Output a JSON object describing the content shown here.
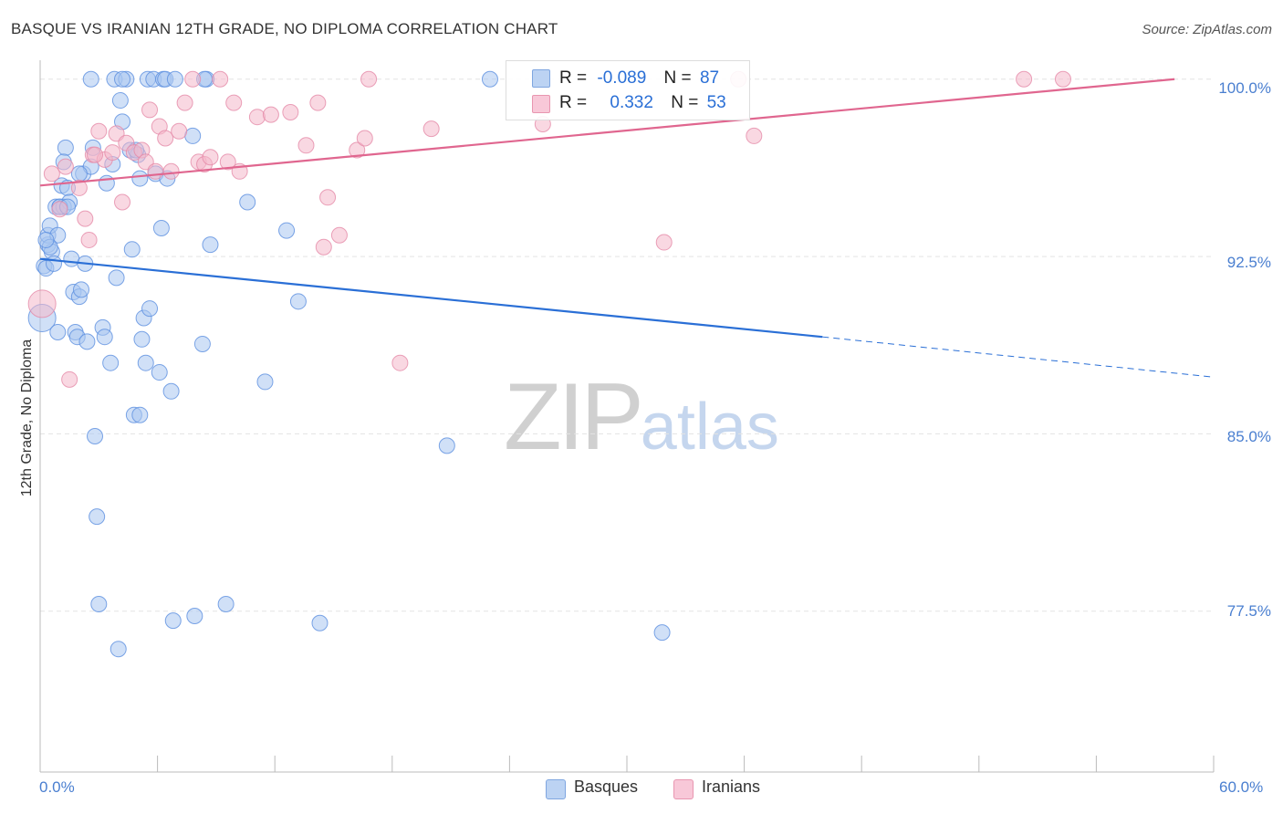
{
  "title": "BASQUE VS IRANIAN 12TH GRADE, NO DIPLOMA CORRELATION CHART",
  "source": "Source: ZipAtlas.com",
  "watermark": {
    "zip": "ZIP",
    "atlas": "atlas"
  },
  "colors": {
    "blue": "#2a6fd6",
    "blue_fill": "#a9c6f0",
    "pink": "#e0668f",
    "pink_fill": "#f4b8cb",
    "tick": "#4a7fd0",
    "grid": "#e3e3e3"
  },
  "legend": {
    "rows": [
      {
        "r_label": "R =",
        "r_value": "-0.089",
        "n_label": "N =",
        "n_value": "87",
        "series": "Basques"
      },
      {
        "r_label": "R =",
        "r_value": "0.332",
        "n_label": "N =",
        "n_value": "53",
        "series": "Iranians"
      }
    ]
  },
  "chart_data": {
    "type": "scatter",
    "title": "BASQUE VS IRANIAN 12TH GRADE, NO DIPLOMA CORRELATION CHART",
    "xlabel": "",
    "ylabel": "12th Grade, No Diploma",
    "xlim": [
      0,
      60
    ],
    "ylim": [
      70.7,
      100.8
    ],
    "x_tick_labels": [
      "0.0%",
      "60.0%"
    ],
    "y_ticks": [
      77.5,
      85.0,
      92.5,
      100.0
    ],
    "y_tick_labels": [
      "77.5%",
      "85.0%",
      "92.5%",
      "100.0%"
    ],
    "legend_position": "bottom-center",
    "series": [
      {
        "name": "Basques",
        "trend": {
          "x": [
            0,
            40,
            60
          ],
          "y": [
            92.4,
            89.1,
            87.4
          ],
          "solid_until": 40
        },
        "points": [
          [
            0.2,
            92.1
          ],
          [
            0.3,
            92.0
          ],
          [
            0.4,
            93.0
          ],
          [
            0.4,
            93.4
          ],
          [
            0.5,
            93.8
          ],
          [
            0.6,
            92.7
          ],
          [
            0.7,
            92.2
          ],
          [
            0.8,
            94.6
          ],
          [
            0.9,
            93.4
          ],
          [
            1.0,
            94.6
          ],
          [
            1.1,
            95.5
          ],
          [
            1.2,
            94.6
          ],
          [
            1.3,
            97.1
          ],
          [
            1.4,
            95.4
          ],
          [
            1.5,
            94.8
          ],
          [
            1.6,
            92.4
          ],
          [
            1.7,
            91.0
          ],
          [
            1.8,
            89.3
          ],
          [
            1.9,
            89.1
          ],
          [
            2.0,
            90.8
          ],
          [
            2.1,
            91.1
          ],
          [
            2.2,
            96.0
          ],
          [
            2.3,
            92.2
          ],
          [
            2.4,
            88.9
          ],
          [
            2.6,
            96.3
          ],
          [
            2.7,
            97.1
          ],
          [
            2.8,
            84.9
          ],
          [
            2.9,
            81.5
          ],
          [
            3.0,
            77.8
          ],
          [
            3.2,
            89.5
          ],
          [
            3.3,
            89.1
          ],
          [
            3.4,
            95.6
          ],
          [
            3.6,
            88.0
          ],
          [
            3.8,
            100.0
          ],
          [
            3.9,
            91.6
          ],
          [
            4.0,
            75.9
          ],
          [
            4.1,
            99.1
          ],
          [
            4.2,
            98.2
          ],
          [
            4.4,
            100.0
          ],
          [
            4.6,
            97.0
          ],
          [
            4.7,
            92.8
          ],
          [
            4.8,
            85.8
          ],
          [
            5.0,
            96.8
          ],
          [
            5.1,
            95.8
          ],
          [
            5.2,
            89.0
          ],
          [
            5.3,
            89.9
          ],
          [
            5.4,
            88.0
          ],
          [
            5.5,
            100.0
          ],
          [
            5.6,
            90.3
          ],
          [
            5.8,
            100.0
          ],
          [
            5.9,
            96.0
          ],
          [
            6.1,
            87.6
          ],
          [
            6.2,
            93.7
          ],
          [
            6.3,
            100.0
          ],
          [
            6.4,
            100.0
          ],
          [
            6.5,
            95.8
          ],
          [
            6.7,
            86.8
          ],
          [
            6.8,
            77.1
          ],
          [
            7.8,
            97.6
          ],
          [
            7.9,
            77.3
          ],
          [
            8.3,
            88.8
          ],
          [
            8.5,
            100.0
          ],
          [
            8.7,
            93.0
          ],
          [
            9.5,
            77.8
          ],
          [
            10.6,
            94.8
          ],
          [
            11.5,
            87.2
          ],
          [
            12.6,
            93.6
          ],
          [
            13.2,
            90.6
          ],
          [
            14.3,
            77.0
          ],
          [
            20.8,
            84.5
          ],
          [
            23.0,
            100.0
          ],
          [
            31.8,
            76.6
          ],
          [
            0.1,
            89.9
          ],
          [
            1.2,
            96.5
          ],
          [
            0.5,
            92.9
          ],
          [
            2.0,
            96.0
          ],
          [
            0.3,
            93.2
          ],
          [
            1.0,
            94.6
          ],
          [
            3.7,
            96.4
          ],
          [
            4.9,
            97.0
          ],
          [
            6.9,
            100.0
          ],
          [
            8.4,
            100.0
          ],
          [
            5.1,
            85.8
          ],
          [
            4.2,
            100.0
          ],
          [
            2.6,
            100.0
          ],
          [
            1.4,
            94.6
          ],
          [
            0.9,
            89.3
          ]
        ]
      },
      {
        "name": "Iranians",
        "trend": {
          "x": [
            0,
            58
          ],
          "y": [
            95.5,
            100.0
          ]
        },
        "points": [
          [
            0.1,
            90.5
          ],
          [
            0.6,
            96.0
          ],
          [
            1.0,
            94.5
          ],
          [
            1.3,
            96.3
          ],
          [
            1.5,
            87.3
          ],
          [
            2.0,
            95.4
          ],
          [
            2.3,
            94.1
          ],
          [
            2.5,
            93.2
          ],
          [
            2.7,
            96.8
          ],
          [
            3.0,
            97.8
          ],
          [
            3.3,
            96.6
          ],
          [
            3.7,
            96.9
          ],
          [
            3.9,
            97.7
          ],
          [
            4.2,
            94.8
          ],
          [
            4.4,
            97.3
          ],
          [
            4.8,
            96.9
          ],
          [
            5.2,
            97.0
          ],
          [
            5.4,
            96.5
          ],
          [
            5.6,
            98.7
          ],
          [
            5.9,
            96.1
          ],
          [
            6.1,
            98.0
          ],
          [
            6.4,
            97.5
          ],
          [
            6.7,
            96.1
          ],
          [
            7.1,
            97.8
          ],
          [
            7.4,
            99.0
          ],
          [
            7.8,
            100.0
          ],
          [
            8.1,
            96.5
          ],
          [
            8.4,
            96.4
          ],
          [
            8.7,
            96.7
          ],
          [
            9.2,
            100.0
          ],
          [
            9.6,
            96.5
          ],
          [
            9.9,
            99.0
          ],
          [
            10.2,
            96.1
          ],
          [
            11.1,
            98.4
          ],
          [
            11.8,
            98.5
          ],
          [
            12.8,
            98.6
          ],
          [
            13.6,
            97.2
          ],
          [
            14.2,
            99.0
          ],
          [
            14.5,
            92.9
          ],
          [
            14.7,
            95.0
          ],
          [
            15.3,
            93.4
          ],
          [
            16.2,
            97.0
          ],
          [
            16.6,
            97.5
          ],
          [
            16.8,
            100.0
          ],
          [
            18.4,
            88.0
          ],
          [
            20.0,
            97.9
          ],
          [
            25.7,
            98.1
          ],
          [
            31.9,
            93.1
          ],
          [
            35.7,
            100.0
          ],
          [
            36.5,
            97.6
          ],
          [
            50.3,
            100.0
          ],
          [
            52.3,
            100.0
          ],
          [
            2.8,
            96.8
          ]
        ]
      }
    ]
  },
  "bottom_legend": {
    "items": [
      "Basques",
      "Iranians"
    ]
  }
}
